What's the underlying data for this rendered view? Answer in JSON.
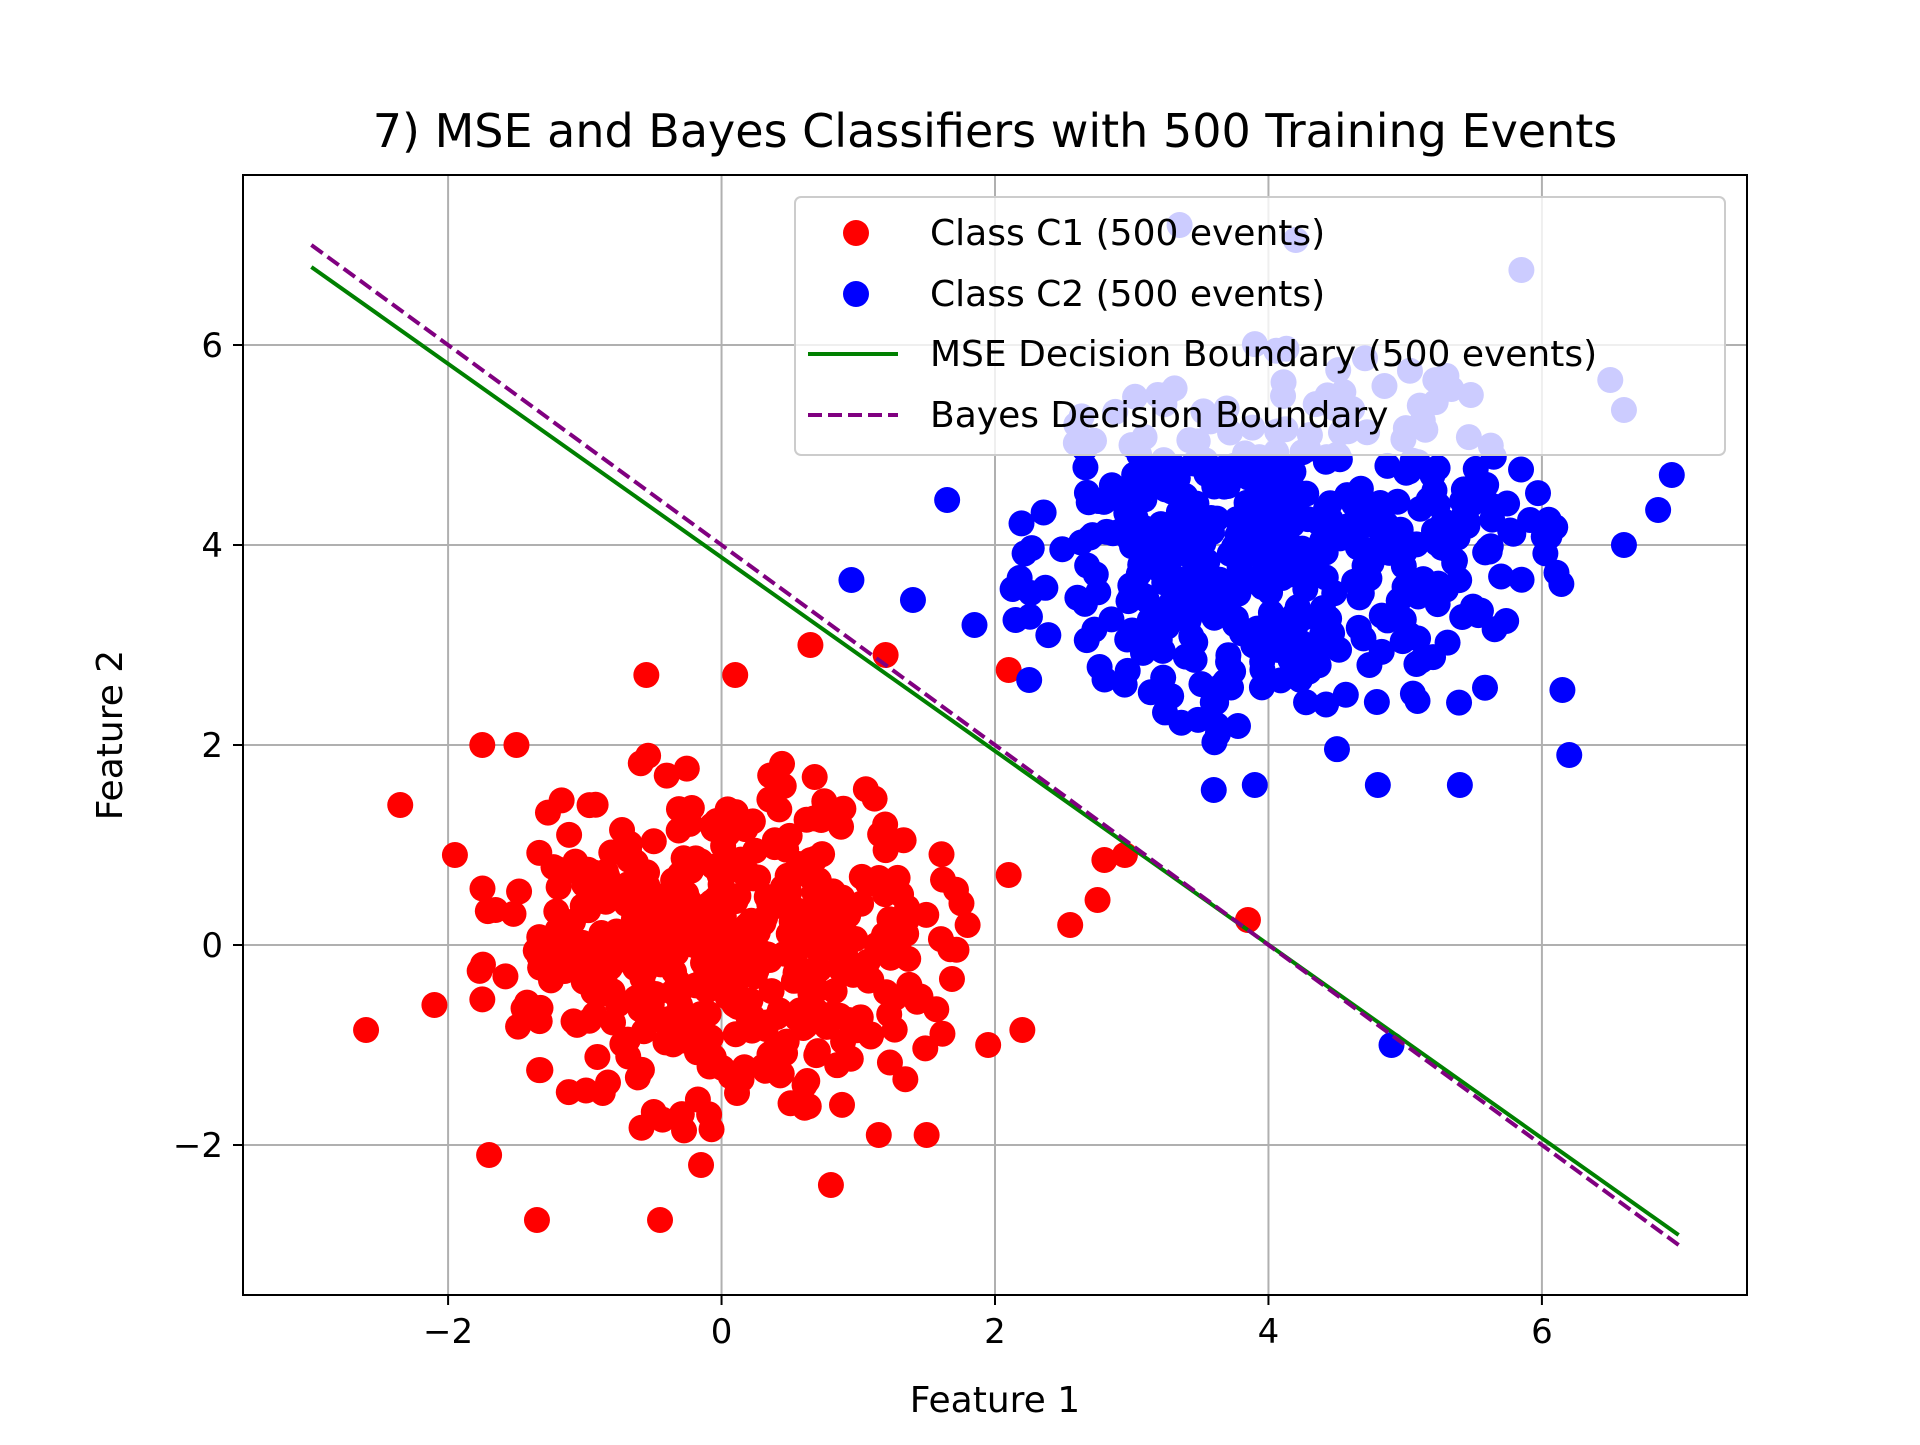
{
  "chart_data": {
    "type": "scatter",
    "title": "7) MSE and Bayes Classifiers with 500 Training Events",
    "xlabel": "Feature 1",
    "ylabel": "Feature 2",
    "xlim": [
      -3.5,
      7.5
    ],
    "ylim": [
      -3.5,
      7.7
    ],
    "xticks": [
      -2,
      0,
      2,
      4,
      6
    ],
    "yticks": [
      -2,
      0,
      2,
      4,
      6
    ],
    "xtick_labels": [
      "−2",
      "0",
      "2",
      "4",
      "6"
    ],
    "ytick_labels": [
      "−2",
      "0",
      "2",
      "4",
      "6"
    ],
    "grid": true,
    "legend_position": "top-right",
    "colors": {
      "class_c1": "#ff0000",
      "class_c2": "#0000ff",
      "mse": "#008000",
      "bayes": "#800080"
    },
    "series": [
      {
        "name": "Class C1 (500 events)",
        "kind": "scatter",
        "color": "#ff0000",
        "n": 500,
        "mean": [
          0,
          0
        ],
        "std": [
          0.85,
          0.9
        ],
        "seed": 11,
        "outliers": [
          [
            -2.35,
            1.4
          ],
          [
            -2.6,
            -0.85
          ],
          [
            -1.35,
            -2.75
          ],
          [
            -0.45,
            -2.75
          ],
          [
            0.8,
            -2.4
          ],
          [
            2.1,
            2.75
          ],
          [
            0.1,
            2.7
          ],
          [
            -0.55,
            2.7
          ],
          [
            1.2,
            2.9
          ],
          [
            0.65,
            3.0
          ],
          [
            2.95,
            0.9
          ],
          [
            2.8,
            0.85
          ],
          [
            3.85,
            0.25
          ],
          [
            2.55,
            0.2
          ],
          [
            2.75,
            0.45
          ],
          [
            2.1,
            0.7
          ],
          [
            1.95,
            -1.0
          ],
          [
            2.2,
            -0.85
          ],
          [
            1.5,
            -1.9
          ],
          [
            1.15,
            -1.9
          ],
          [
            -2.1,
            -0.6
          ],
          [
            -1.7,
            -2.1
          ],
          [
            -0.15,
            -2.2
          ],
          [
            -1.95,
            0.9
          ],
          [
            -1.75,
            2.0
          ],
          [
            -1.5,
            2.0
          ]
        ]
      },
      {
        "name": "Class C2 (500 events)",
        "kind": "scatter",
        "color": "#0000ff",
        "n": 500,
        "mean": [
          4.1,
          4.0
        ],
        "std": [
          0.95,
          0.95
        ],
        "seed": 29,
        "outliers": [
          [
            4.9,
            -1.0
          ],
          [
            0.95,
            3.65
          ],
          [
            1.4,
            3.45
          ],
          [
            1.65,
            4.45
          ],
          [
            1.85,
            3.2
          ],
          [
            3.35,
            7.2
          ],
          [
            4.2,
            7.05
          ],
          [
            5.85,
            6.75
          ],
          [
            6.5,
            5.65
          ],
          [
            6.6,
            5.35
          ],
          [
            6.95,
            4.7
          ],
          [
            6.85,
            4.35
          ],
          [
            6.6,
            4.0
          ],
          [
            6.2,
            1.9
          ],
          [
            6.15,
            2.55
          ],
          [
            5.4,
            1.6
          ],
          [
            3.6,
            1.55
          ],
          [
            3.9,
            1.6
          ],
          [
            4.8,
            1.6
          ],
          [
            2.25,
            2.65
          ],
          [
            2.15,
            3.25
          ]
        ]
      },
      {
        "name": "MSE Decision Boundary (500 events)",
        "kind": "line",
        "style": "solid",
        "color": "#008000",
        "x": [
          -3,
          7
        ],
        "y": [
          6.78,
          -2.9
        ]
      },
      {
        "name": "Bayes Decision Boundary",
        "kind": "line",
        "style": "dashed",
        "color": "#800080",
        "x": [
          -3,
          7
        ],
        "y": [
          7.0,
          -3.0
        ]
      }
    ]
  }
}
